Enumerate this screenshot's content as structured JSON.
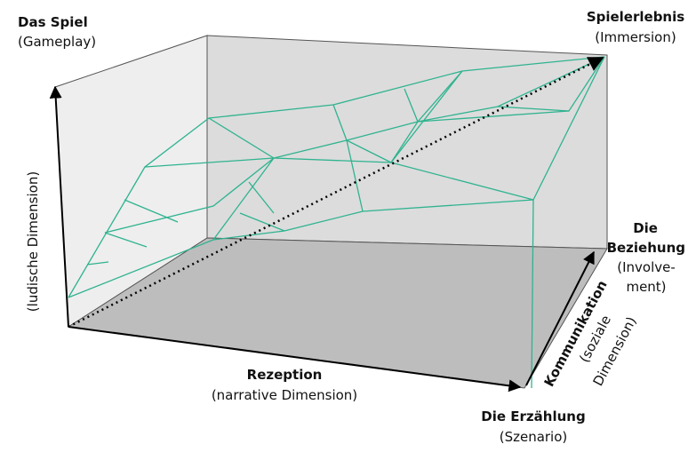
{
  "corners": {
    "top_left": {
      "title": "Das Spiel",
      "subtitle": "(Gameplay)"
    },
    "top_right": {
      "title": "Spielerlebnis",
      "subtitle": "(Immersion)"
    },
    "right": {
      "title_lines": [
        "Die",
        "Beziehung"
      ],
      "subtitle_lines": [
        "(Involve-",
        "ment)"
      ]
    },
    "bottom_right": {
      "title": "Die Erzählung",
      "subtitle": "(Szenario)"
    }
  },
  "axes": {
    "vertical": {
      "subtitle": "(ludische Dimension)"
    },
    "horizontal": {
      "title": "Rezeption",
      "subtitle": "(narrative Dimension)"
    },
    "depth": {
      "title": "Kommunikation",
      "subtitle_lines": [
        "(soziale",
        "Dimension)"
      ]
    }
  }
}
